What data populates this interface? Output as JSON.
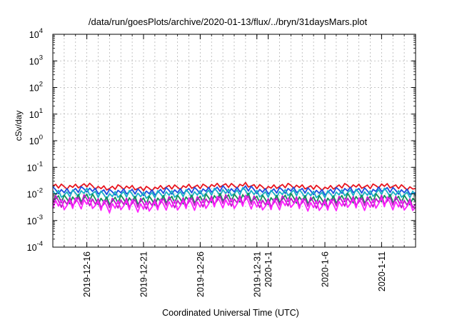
{
  "chart_data": {
    "type": "line",
    "title": "/data/run/goesPlots/archive/2020-01-13/flux/../bryn/31daysMars.plot",
    "xlabel": "Coordinated Universal Time (UTC)",
    "ylabel": "cSv/day",
    "y_scale": "log",
    "ylim": [
      0.0001,
      10000
    ],
    "y_ticks": [
      {
        "value": 0.0001,
        "base": "10",
        "exp": "-4"
      },
      {
        "value": 0.001,
        "base": "10",
        "exp": "-3"
      },
      {
        "value": 0.01,
        "base": "10",
        "exp": "-2"
      },
      {
        "value": 0.1,
        "base": "10",
        "exp": "-1"
      },
      {
        "value": 1,
        "base": "10",
        "exp": "0"
      },
      {
        "value": 10,
        "base": "10",
        "exp": "1"
      },
      {
        "value": 100,
        "base": "10",
        "exp": "2"
      },
      {
        "value": 1000,
        "base": "10",
        "exp": "3"
      },
      {
        "value": 10000,
        "base": "10",
        "exp": "4"
      }
    ],
    "xlim": [
      "2019-12-13",
      "2020-01-14"
    ],
    "x_ticks": [
      {
        "date": "2019-12-16",
        "label": "2019-12-16"
      },
      {
        "date": "2019-12-21",
        "label": "2019-12-21"
      },
      {
        "date": "2019-12-26",
        "label": "2019-12-26"
      },
      {
        "date": "2019-12-31",
        "label": "2019-12-31"
      },
      {
        "date": "2020-01-01",
        "label": "2020-1-1"
      },
      {
        "date": "2020-01-06",
        "label": "2020-1-6"
      },
      {
        "date": "2020-01-11",
        "label": "2020-1-11"
      }
    ],
    "grid": true,
    "x": [
      "2019-12-13",
      "2019-12-14",
      "2019-12-15",
      "2019-12-16",
      "2019-12-17",
      "2019-12-18",
      "2019-12-19",
      "2019-12-20",
      "2019-12-21",
      "2019-12-22",
      "2019-12-23",
      "2019-12-24",
      "2019-12-25",
      "2019-12-26",
      "2019-12-27",
      "2019-12-28",
      "2019-12-29",
      "2019-12-30",
      "2019-12-31",
      "2020-01-01",
      "2020-01-02",
      "2020-01-03",
      "2020-01-04",
      "2020-01-05",
      "2020-01-06",
      "2020-01-07",
      "2020-01-08",
      "2020-01-09",
      "2020-01-10",
      "2020-01-11",
      "2020-01-12",
      "2020-01-13",
      "2020-01-14"
    ],
    "series": [
      {
        "color": "#e8141e",
        "values": [
          0.02,
          0.018,
          0.019,
          0.021,
          0.017,
          0.016,
          0.018,
          0.017,
          0.015,
          0.016,
          0.018,
          0.017,
          0.019,
          0.018,
          0.02,
          0.021,
          0.019,
          0.022,
          0.018,
          0.017,
          0.019,
          0.02,
          0.018,
          0.017,
          0.016,
          0.018,
          0.02,
          0.019,
          0.018,
          0.021,
          0.019,
          0.017,
          0.016
        ]
      },
      {
        "color": "#1a4fe0",
        "values": [
          0.014,
          0.012,
          0.013,
          0.015,
          0.012,
          0.011,
          0.012,
          0.012,
          0.011,
          0.011,
          0.013,
          0.012,
          0.013,
          0.013,
          0.014,
          0.015,
          0.013,
          0.016,
          0.013,
          0.012,
          0.013,
          0.014,
          0.013,
          0.012,
          0.011,
          0.013,
          0.014,
          0.013,
          0.012,
          0.015,
          0.013,
          0.012,
          0.011
        ]
      },
      {
        "color": "#19b0c8",
        "values": [
          0.011,
          0.009,
          0.01,
          0.012,
          0.009,
          0.0085,
          0.0095,
          0.0092,
          0.0085,
          0.0088,
          0.01,
          0.0092,
          0.0102,
          0.0098,
          0.011,
          0.012,
          0.0102,
          0.0125,
          0.0098,
          0.0092,
          0.0102,
          0.011,
          0.0098,
          0.0092,
          0.0088,
          0.0098,
          0.011,
          0.0102,
          0.0096,
          0.0118,
          0.0102,
          0.0092,
          0.0086
        ]
      },
      {
        "color": "#12905a",
        "values": [
          0.0068,
          0.0058,
          0.0063,
          0.0072,
          0.0056,
          0.0052,
          0.0058,
          0.0057,
          0.0052,
          0.0054,
          0.0062,
          0.0057,
          0.0063,
          0.006,
          0.0068,
          0.0073,
          0.0063,
          0.0078,
          0.006,
          0.0056,
          0.0063,
          0.0068,
          0.006,
          0.0057,
          0.0054,
          0.006,
          0.0068,
          0.0063,
          0.0059,
          0.0073,
          0.0063,
          0.0057,
          0.0053
        ]
      },
      {
        "color": "#c01ac8",
        "values": [
          0.0055,
          0.0045,
          0.005,
          0.0058,
          0.0043,
          0.004,
          0.0046,
          0.0044,
          0.004,
          0.0042,
          0.0049,
          0.0044,
          0.005,
          0.0047,
          0.0054,
          0.0058,
          0.005,
          0.0062,
          0.0047,
          0.0043,
          0.005,
          0.0054,
          0.0047,
          0.0044,
          0.0042,
          0.0047,
          0.0054,
          0.005,
          0.0046,
          0.0058,
          0.005,
          0.0044,
          0.0041
        ]
      },
      {
        "color": "#ff22ff",
        "values": [
          0.0045,
          0.0036,
          0.004,
          0.0047,
          0.0034,
          0.0031,
          0.0036,
          0.0035,
          0.0031,
          0.0033,
          0.0039,
          0.0035,
          0.004,
          0.0037,
          0.0044,
          0.0047,
          0.004,
          0.005,
          0.0037,
          0.0034,
          0.004,
          0.0044,
          0.0037,
          0.0035,
          0.0033,
          0.0037,
          0.0044,
          0.004,
          0.0036,
          0.0047,
          0.004,
          0.0035,
          0.0032
        ]
      }
    ]
  }
}
